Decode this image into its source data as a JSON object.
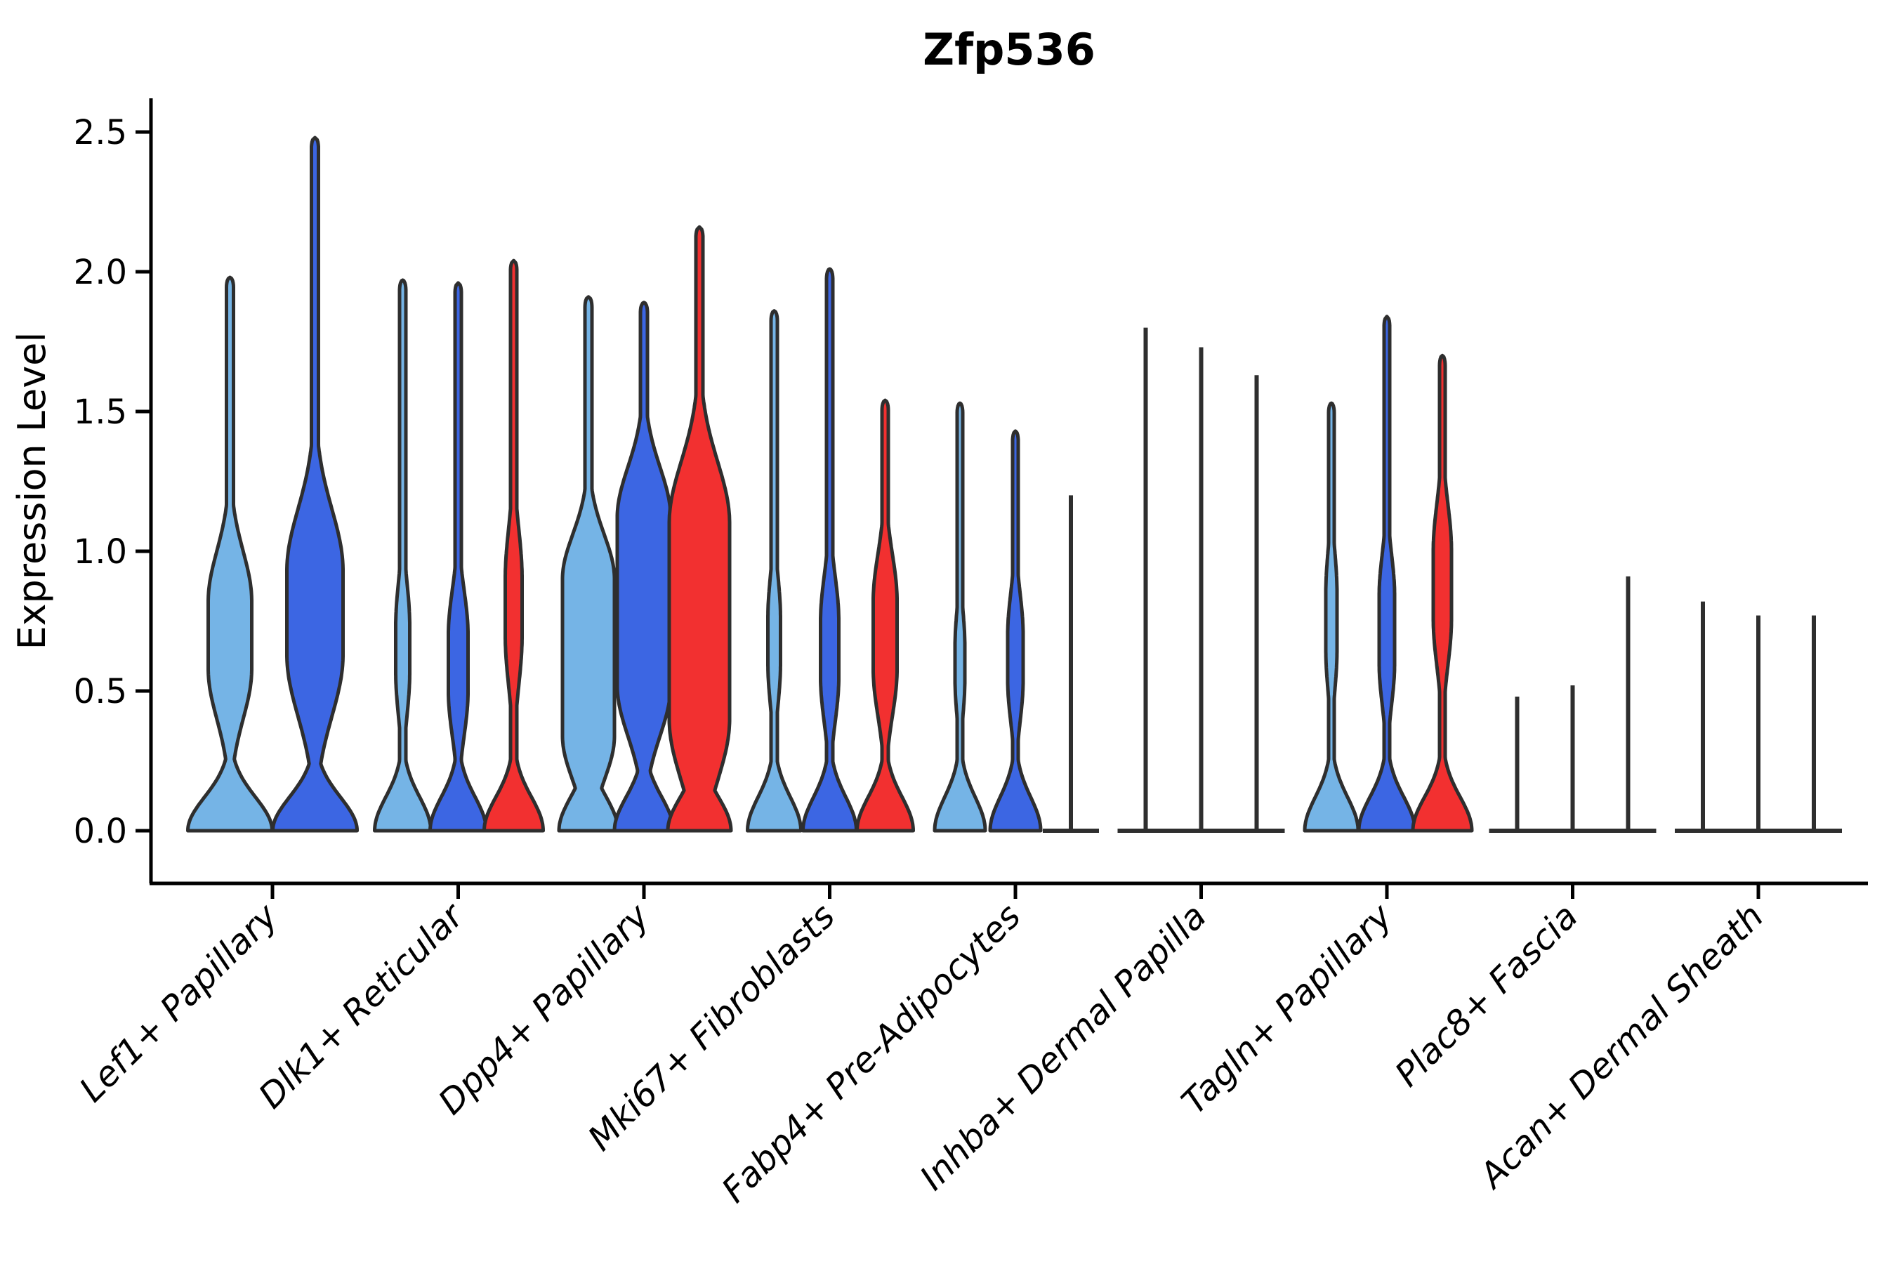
{
  "chart_data": {
    "type": "violin",
    "title": "Zfp536",
    "xlabel": "",
    "ylabel": "Expression Level",
    "ylim": [
      -0.19,
      2.62
    ],
    "grid": false,
    "legend": "none",
    "yticks": {
      "values": [
        0.0,
        0.5,
        1.0,
        1.5,
        2.0,
        2.5
      ],
      "labels": [
        "0.0",
        "0.5",
        "1.0",
        "1.5",
        "2.0",
        "2.5"
      ]
    },
    "series_colors": [
      "#75B4E6",
      "#3C66E3",
      "#F23030"
    ],
    "outline_color": "#2E2E2E",
    "axis_color": "#000000",
    "categories": [
      "Lef1+ Papillary",
      "Dlk1+ Reticular",
      "Dpp4+ Papillary",
      "Mki67+ Fibroblasts",
      "Fabp4+ Pre-Adipocytes",
      "Inhba+ Dermal Papilla",
      "Tagln+ Papillary",
      "Plac8+ Fascia",
      "Acan+ Dermal Sheath"
    ],
    "groups": [
      {
        "label": "Lef1+ Papillary",
        "violins": [
          {
            "type": "violin",
            "series": 0,
            "max": 1.98,
            "bw": 60,
            "sw": 5,
            "bulge": {
              "c": 0.7,
              "w": 31,
              "s": 0.18,
              "p": 0.12
            }
          },
          {
            "type": "violin",
            "series": 1,
            "max": 2.48,
            "bw": 60,
            "sw": 5,
            "bulge": {
              "c": 0.78,
              "w": 40,
              "s": 0.22,
              "p": 0.15
            }
          }
        ]
      },
      {
        "label": "Dlk1+ Reticular",
        "violins": [
          {
            "type": "violin",
            "series": 0,
            "max": 1.97,
            "bw": 40,
            "sw": 4.5,
            "bulge": {
              "c": 0.65,
              "w": 10,
              "s": 0.16,
              "p": 0.08
            }
          },
          {
            "type": "violin",
            "series": 1,
            "max": 1.96,
            "bw": 40,
            "sw": 4.5,
            "bulge": {
              "c": 0.6,
              "w": 14,
              "s": 0.16,
              "p": 0.1
            }
          },
          {
            "type": "violin",
            "series": 2,
            "max": 2.04,
            "bw": 42,
            "sw": 4.5,
            "bulge": {
              "c": 0.8,
              "w": 12,
              "s": 0.18,
              "p": 0.1
            }
          }
        ]
      },
      {
        "label": "Dpp4+ Papillary",
        "violins": [
          {
            "type": "violin",
            "series": 0,
            "max": 1.91,
            "bw": 42,
            "sw": 5,
            "bulge": {
              "c": 0.62,
              "w": 37,
              "s": 0.16,
              "p": 0.28
            }
          },
          {
            "type": "violin",
            "series": 1,
            "max": 1.89,
            "bw": 42,
            "sw": 5,
            "bulge": {
              "c": 0.82,
              "w": 38,
              "s": 0.18,
              "p": 0.3
            }
          },
          {
            "type": "violin",
            "series": 2,
            "max": 2.16,
            "bw": 45,
            "sw": 5,
            "bulge": {
              "c": 0.75,
              "w": 43,
              "s": 0.22,
              "p": 0.35
            }
          }
        ]
      },
      {
        "label": "Mki67+ Fibroblasts",
        "violins": [
          {
            "type": "violin",
            "series": 0,
            "max": 1.86,
            "bw": 38,
            "sw": 4.5,
            "bulge": {
              "c": 0.68,
              "w": 9,
              "s": 0.15,
              "p": 0.08
            }
          },
          {
            "type": "violin",
            "series": 1,
            "max": 2.01,
            "bw": 38,
            "sw": 4.5,
            "bulge": {
              "c": 0.65,
              "w": 13,
              "s": 0.16,
              "p": 0.1
            }
          },
          {
            "type": "violin",
            "series": 2,
            "max": 1.54,
            "bw": 40,
            "sw": 4.5,
            "bulge": {
              "c": 0.7,
              "w": 17,
              "s": 0.17,
              "p": 0.12
            }
          }
        ]
      },
      {
        "label": "Fabp4+ Pre-Adipocytes",
        "violins": [
          {
            "type": "violin",
            "series": 0,
            "max": 1.53,
            "bw": 36,
            "sw": 4,
            "bulge": {
              "c": 0.6,
              "w": 7,
              "s": 0.13,
              "p": 0.06
            }
          },
          {
            "type": "violin",
            "series": 1,
            "max": 1.43,
            "bw": 36,
            "sw": 4,
            "bulge": {
              "c": 0.62,
              "w": 11,
              "s": 0.15,
              "p": 0.08
            }
          },
          {
            "type": "line",
            "series": 2,
            "max": 1.2,
            "lw": 40
          }
        ]
      },
      {
        "label": "Inhba+ Dermal Papilla",
        "violins": [
          {
            "type": "line",
            "series": 0,
            "max": 1.8,
            "lw": 40
          },
          {
            "type": "line",
            "series": 1,
            "max": 1.73,
            "lw": 40
          },
          {
            "type": "line",
            "series": 2,
            "max": 1.63,
            "lw": 40
          }
        ]
      },
      {
        "label": "Tagln+ Papillary",
        "violins": [
          {
            "type": "violin",
            "series": 0,
            "max": 1.53,
            "bw": 38,
            "sw": 4,
            "bulge": {
              "c": 0.75,
              "w": 8,
              "s": 0.15,
              "p": 0.1
            }
          },
          {
            "type": "violin",
            "series": 1,
            "max": 1.84,
            "bw": 40,
            "sw": 4,
            "bulge": {
              "c": 0.72,
              "w": 11,
              "s": 0.15,
              "p": 0.12
            }
          },
          {
            "type": "violin",
            "series": 2,
            "max": 1.7,
            "bw": 42,
            "sw": 4,
            "bulge": {
              "c": 0.88,
              "w": 13,
              "s": 0.17,
              "p": 0.12
            }
          }
        ]
      },
      {
        "label": "Plac8+ Fascia",
        "violins": [
          {
            "type": "line",
            "series": 0,
            "max": 0.48,
            "lw": 40
          },
          {
            "type": "line",
            "series": 1,
            "max": 0.52,
            "lw": 40
          },
          {
            "type": "line",
            "series": 2,
            "max": 0.91,
            "lw": 40
          }
        ]
      },
      {
        "label": "Acan+ Dermal Sheath",
        "violins": [
          {
            "type": "line",
            "series": 0,
            "max": 0.82,
            "lw": 40
          },
          {
            "type": "line",
            "series": 1,
            "max": 0.77,
            "lw": 40
          },
          {
            "type": "line",
            "series": 2,
            "max": 0.77,
            "lw": 40
          }
        ]
      }
    ]
  }
}
